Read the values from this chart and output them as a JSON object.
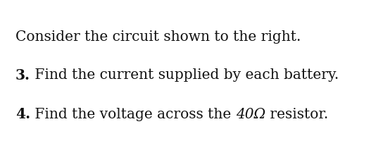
{
  "line1": "Consider the circuit shown to the right.",
  "line2_bold": "3.",
  "line2_rest": " Find the current supplied by each battery.",
  "line3_bold": "4.",
  "line3_part1": " Find the voltage across the ",
  "line3_italic": "40Ω",
  "line3_part2": " resistor.",
  "background_color": "#ffffff",
  "text_color": "#111111",
  "fontsize": 14.5,
  "fig_width": 5.44,
  "fig_height": 2.1,
  "dpi": 100
}
